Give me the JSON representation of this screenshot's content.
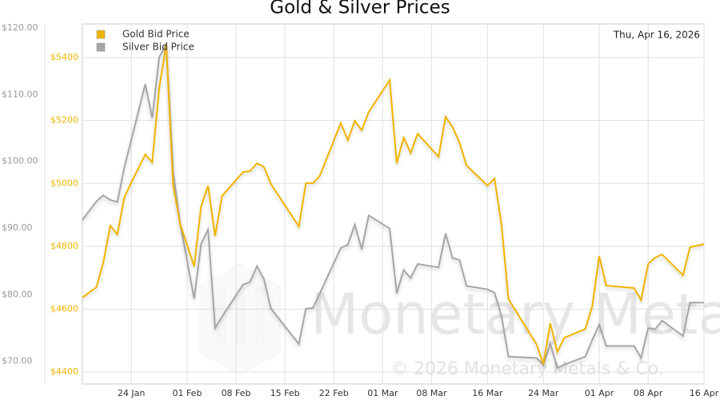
{
  "chart_data": {
    "type": "line",
    "title": "Gold & Silver Prices",
    "date_label": "Thu, Apr 16, 2026",
    "watermark": "Monetary Metals",
    "copyright": "© 2026 Monetary Metals & Co.",
    "grid": true,
    "legend": "top-left",
    "x": [
      17,
      19,
      20,
      21,
      22,
      23,
      24,
      26,
      27,
      28,
      29,
      30,
      31,
      33,
      34,
      35,
      36,
      37,
      40,
      41,
      42,
      43,
      44,
      48,
      49,
      50,
      51,
      54,
      55,
      56,
      57,
      58,
      61,
      62,
      63,
      64,
      65,
      68,
      69,
      70,
      71,
      72,
      75,
      76,
      77,
      78,
      82,
      83,
      84,
      85,
      86,
      89,
      90,
      91,
      92,
      96,
      97,
      98,
      99,
      100,
      103,
      104,
      106
    ],
    "xlim": [
      17,
      106
    ],
    "xticks": [
      {
        "value": 24,
        "label": "24 Jan"
      },
      {
        "value": 32,
        "label": "01 Feb"
      },
      {
        "value": 39,
        "label": "08 Feb"
      },
      {
        "value": 46,
        "label": "15 Feb"
      },
      {
        "value": 53,
        "label": "22 Feb"
      },
      {
        "value": 60,
        "label": "01 Mar"
      },
      {
        "value": 67,
        "label": "08 Mar"
      },
      {
        "value": 75,
        "label": "16 Mar"
      },
      {
        "value": 83,
        "label": "24 Mar"
      },
      {
        "value": 91,
        "label": "01 Apr"
      },
      {
        "value": 98,
        "label": "08 Apr"
      },
      {
        "value": 106,
        "label": "16 Apr"
      }
    ],
    "ylim": [
      4362,
      5507
    ],
    "yticks": [
      {
        "value": 4400,
        "label": "$4400"
      },
      {
        "value": 4600,
        "label": "$4600"
      },
      {
        "value": 4800,
        "label": "$4800"
      },
      {
        "value": 5000,
        "label": "$5000"
      },
      {
        "value": 5200,
        "label": "$5200"
      },
      {
        "value": 5400,
        "label": "$5400"
      }
    ],
    "y2lim": [
      66.6,
      120.6
    ],
    "y2ticks": [
      {
        "value": 70,
        "label": "$70.00"
      },
      {
        "value": 80,
        "label": "$80.00"
      },
      {
        "value": 90,
        "label": "$90.00"
      },
      {
        "value": 100,
        "label": "$100.00"
      },
      {
        "value": 110,
        "label": "$110.00"
      },
      {
        "value": 120,
        "label": "$120.00"
      }
    ],
    "series": [
      {
        "name": "Gold Bid Price",
        "color": "#f0b400",
        "values": [
          4637,
          4670,
          4749,
          4866,
          4838,
          4955,
          5003,
          5092,
          5067,
          5303,
          5443,
          4993,
          4871,
          4736,
          4927,
          4993,
          4833,
          4960,
          5036,
          5039,
          5064,
          5052,
          4998,
          4863,
          5001,
          5001,
          5024,
          5192,
          5138,
          5199,
          5169,
          5227,
          5329,
          5064,
          5146,
          5097,
          5158,
          5085,
          5212,
          5179,
          5130,
          5057,
          4993,
          5016,
          4871,
          4632,
          4489,
          4425,
          4555,
          4464,
          4509,
          4537,
          4609,
          4769,
          4675,
          4667,
          4629,
          4744,
          4764,
          4774,
          4708,
          4797,
          4807
        ]
      },
      {
        "name": "Silver Bid Price",
        "color": "#a6a6a6",
        "axis": "y2",
        "values": [
          91.2,
          94.0,
          94.9,
          94.2,
          93.9,
          99.1,
          103.2,
          111.6,
          106.5,
          115.6,
          117.6,
          98.4,
          90.7,
          79.4,
          87.6,
          89.8,
          75.0,
          76.7,
          81.5,
          81.9,
          84.3,
          82.3,
          77.9,
          72.6,
          77.9,
          78.0,
          80.2,
          87.0,
          87.5,
          90.5,
          86.8,
          91.9,
          89.9,
          80.2,
          83.7,
          82.5,
          84.6,
          84.1,
          89.2,
          85.5,
          85.2,
          81.3,
          80.8,
          80.3,
          76.8,
          70.7,
          70.5,
          69.5,
          72.6,
          69.0,
          69.5,
          70.7,
          73.2,
          75.5,
          72.3,
          72.3,
          70.5,
          75.0,
          74.8,
          76.1,
          73.8,
          78.8,
          78.8
        ]
      }
    ]
  }
}
